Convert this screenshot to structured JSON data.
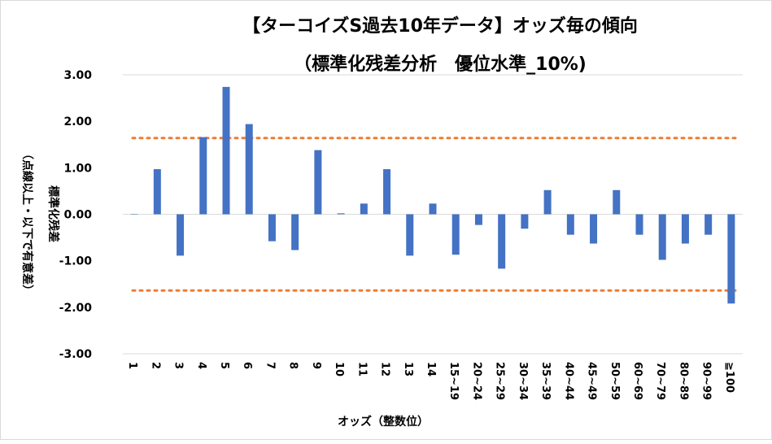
{
  "chart_data": {
    "type": "bar",
    "title": "【ターコイズS過去10年データ】オッズ毎の傾向",
    "subtitle": "（標準化残差分析　優位水準_10%)",
    "xlabel": "オッズ（整数位）",
    "ylabel": "標準化残差",
    "ylabel2": "（点線以上・以下で有意差）",
    "ylim": [
      -3,
      3
    ],
    "yticks": [
      "3.00",
      "2.00",
      "1.00",
      "0.00",
      "-1.00",
      "-2.00",
      "-3.00"
    ],
    "categories": [
      "1",
      "2",
      "3",
      "4",
      "5",
      "6",
      "7",
      "8",
      "9",
      "10",
      "11",
      "12",
      "13",
      "14",
      "15~19",
      "20~24",
      "25~29",
      "30~34",
      "35~39",
      "40~44",
      "45~49",
      "50~59",
      "60~69",
      "70~79",
      "80~89",
      "90~99",
      "≧100"
    ],
    "values": [
      0,
      0.97,
      -0.89,
      1.66,
      2.74,
      1.94,
      -0.58,
      -0.77,
      1.38,
      0.02,
      0.23,
      0.97,
      -0.89,
      0.23,
      -0.87,
      -0.23,
      -1.17,
      -0.31,
      0.52,
      -0.44,
      -0.63,
      0.52,
      -0.44,
      -0.98,
      -0.63,
      -0.44,
      -1.92
    ],
    "thresholds": [
      1.64,
      -1.64
    ],
    "bar_color": "#4472c4",
    "threshold_color": "#ed7d31",
    "grid": false
  }
}
